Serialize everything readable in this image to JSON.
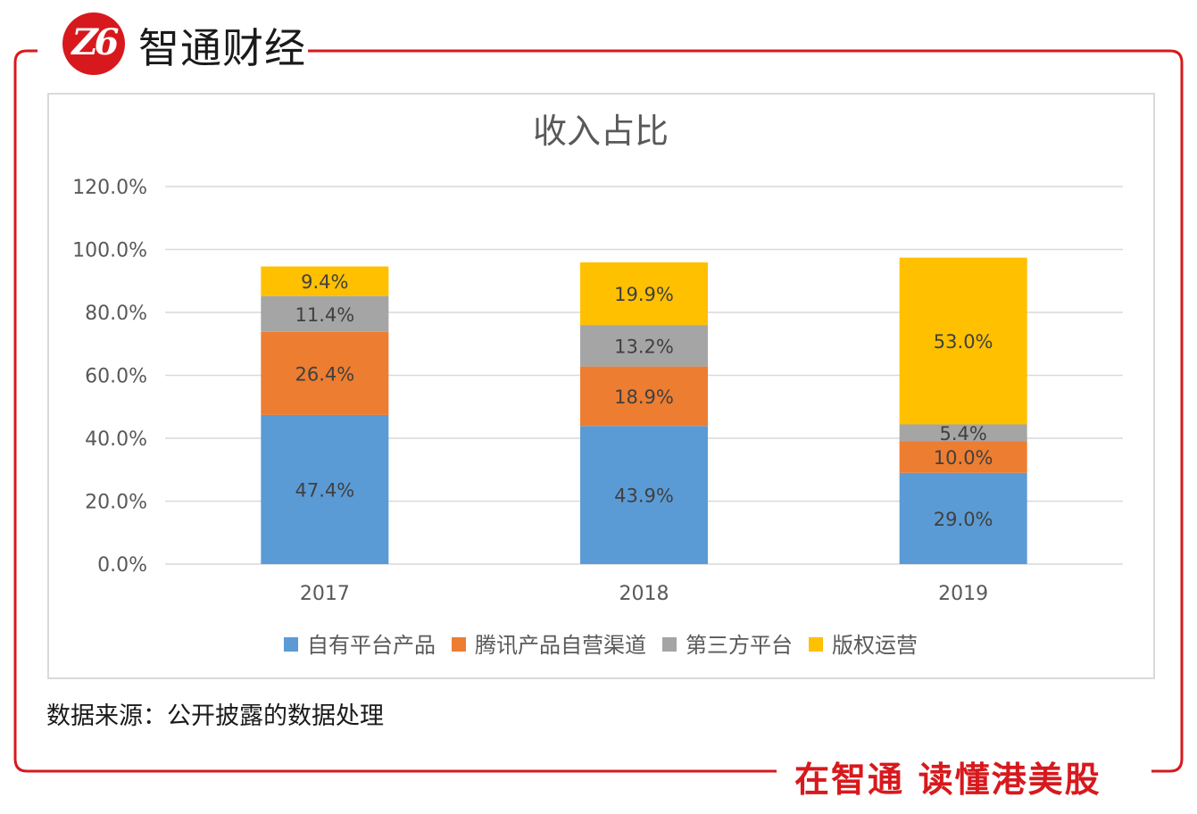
{
  "brand": {
    "logo_text": "Z6",
    "name": "智通财经",
    "slogan": "在智通  读懂港美股",
    "accent_color": "#d7191d"
  },
  "source_note": "数据来源：公开披露的数据处理",
  "chart_data": {
    "type": "bar",
    "stacked": true,
    "title": "收入占比",
    "xlabel": "",
    "ylabel": "",
    "categories": [
      "2017",
      "2018",
      "2019"
    ],
    "ylim": [
      0,
      120
    ],
    "yticks": [
      "0.0%",
      "20.0%",
      "40.0%",
      "60.0%",
      "80.0%",
      "100.0%",
      "120.0%"
    ],
    "grid": true,
    "legend_position": "bottom",
    "series": [
      {
        "name": "自有平台产品",
        "color": "#5b9bd5",
        "values": [
          47.4,
          43.9,
          29.0
        ],
        "labels": [
          "47.4%",
          "43.9%",
          "29.0%"
        ]
      },
      {
        "name": "腾讯产品自营渠道",
        "color": "#ed7d31",
        "values": [
          26.4,
          18.9,
          10.0
        ],
        "labels": [
          "26.4%",
          "18.9%",
          "10.0%"
        ]
      },
      {
        "name": "第三方平台",
        "color": "#a5a5a5",
        "values": [
          11.4,
          13.2,
          5.4
        ],
        "labels": [
          "11.4%",
          "13.2%",
          "5.4%"
        ]
      },
      {
        "name": "版权运营",
        "color": "#ffc000",
        "values": [
          9.4,
          19.9,
          53.0
        ],
        "labels": [
          "9.4%",
          "19.9%",
          "53.0%"
        ]
      }
    ]
  }
}
